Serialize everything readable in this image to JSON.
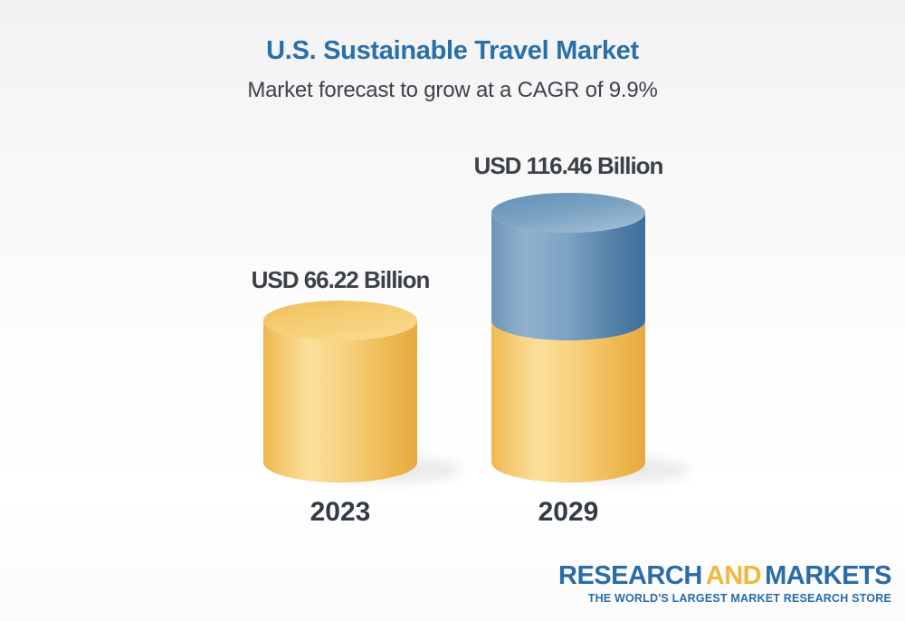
{
  "header": {
    "title": "U.S. Sustainable Travel Market",
    "subtitle": "Market forecast to grow at a CAGR of 9.9%"
  },
  "chart_data": {
    "type": "bar",
    "style": "3d-cylinder",
    "title": "U.S. Sustainable Travel Market",
    "subtitle": "Market forecast to grow at a CAGR of 9.9%",
    "cagr_percent": 9.9,
    "unit": "USD Billion",
    "categories": [
      "2023",
      "2029"
    ],
    "values": [
      66.22,
      116.46
    ],
    "value_labels": [
      "USD 66.22 Billion",
      "USD 116.46 Billion"
    ],
    "legend": "none",
    "axes": "none",
    "colors": {
      "base_segment": "#f2c265",
      "growth_segment": "#5886ae"
    }
  },
  "branding": {
    "name_part1": "RESEARCH",
    "name_part2": "AND",
    "name_part3": "MARKETS",
    "tagline": "THE WORLD'S LARGEST MARKET RESEARCH STORE",
    "logo_blue": "#2a6ca7",
    "logo_gold": "#f0b83e"
  },
  "colors": {
    "title_blue": "#2a70a8",
    "subtitle_gray": "#3e434b",
    "label_gray": "#3c4147"
  }
}
